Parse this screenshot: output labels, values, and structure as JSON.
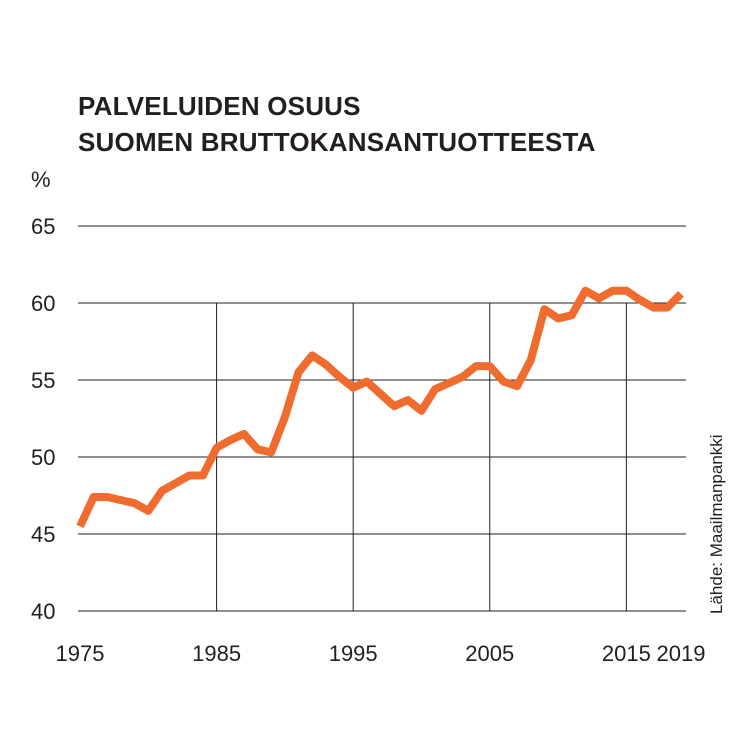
{
  "chart_data": {
    "type": "line",
    "title": "PALVELUIDEN OSUUS",
    "subtitle": "SUOMEN BRUTTOKANSANTUOTTEESTA",
    "ylabel": "%",
    "source": "Lähde: Maailmanpankki",
    "ylim": [
      40,
      65
    ],
    "xlim": [
      1975,
      2019
    ],
    "yticks": [
      40,
      45,
      50,
      55,
      60,
      65
    ],
    "xticks": [
      1975,
      1985,
      1995,
      2005,
      2015,
      2019
    ],
    "vertical_gridlines": [
      1985,
      1995,
      2005,
      2015
    ],
    "line_color": "#ef6c2e",
    "grid_color": "#231f20",
    "x": [
      1975,
      1976,
      1977,
      1978,
      1979,
      1980,
      1981,
      1982,
      1983,
      1984,
      1985,
      1986,
      1987,
      1988,
      1989,
      1990,
      1991,
      1992,
      1993,
      1994,
      1995,
      1996,
      1997,
      1998,
      1999,
      2000,
      2001,
      2002,
      2003,
      2004,
      2005,
      2006,
      2007,
      2008,
      2009,
      2010,
      2011,
      2012,
      2013,
      2014,
      2015,
      2016,
      2017,
      2018,
      2019
    ],
    "values": [
      45.5,
      47.4,
      47.4,
      47.2,
      47.0,
      46.5,
      47.8,
      48.3,
      48.8,
      48.8,
      50.6,
      51.1,
      51.5,
      50.5,
      50.3,
      52.6,
      55.5,
      56.6,
      56.0,
      55.2,
      54.5,
      54.9,
      54.1,
      53.3,
      53.7,
      53.0,
      54.4,
      54.8,
      55.2,
      55.9,
      55.9,
      54.9,
      54.6,
      56.3,
      59.6,
      59.0,
      59.2,
      60.8,
      60.3,
      60.8,
      60.8,
      60.2,
      59.7,
      59.7,
      60.6
    ]
  }
}
